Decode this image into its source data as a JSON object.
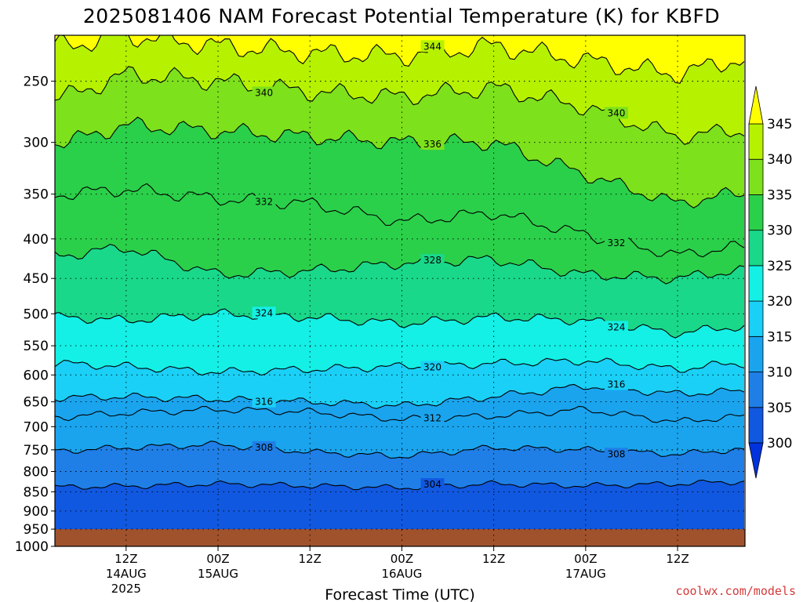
{
  "chart_data": {
    "type": "heatmap",
    "title": "2025081406 NAM Forecast Potential Temperature (K) for KBFD",
    "xlabel": "Forecast Time (UTC)",
    "ylabel": "",
    "credit": "coolwx.com/models",
    "y_scale": "log",
    "y_ticks": [
      250,
      300,
      350,
      400,
      450,
      500,
      550,
      600,
      650,
      700,
      750,
      800,
      850,
      900,
      950,
      1000
    ],
    "x_ticks": [
      {
        "hour": 6,
        "label": "12Z",
        "sub1": "14AUG",
        "sub2": "2025"
      },
      {
        "hour": 18,
        "label": "00Z",
        "sub1": "15AUG",
        "sub2": ""
      },
      {
        "hour": 30,
        "label": "12Z",
        "sub1": "",
        "sub2": ""
      },
      {
        "hour": 42,
        "label": "00Z",
        "sub1": "16AUG",
        "sub2": ""
      },
      {
        "hour": 54,
        "label": "12Z",
        "sub1": "",
        "sub2": ""
      },
      {
        "hour": 66,
        "label": "00Z",
        "sub1": "17AUG",
        "sub2": ""
      },
      {
        "hour": 78,
        "label": "12Z",
        "sub1": "",
        "sub2": ""
      }
    ],
    "colorbar": {
      "levels": [
        300,
        305,
        310,
        315,
        320,
        325,
        330,
        335,
        340,
        345
      ],
      "colors": [
        "#0033dd",
        "#1158e0",
        "#1f7fe6",
        "#1aa4ee",
        "#1ad0f6",
        "#14f0e6",
        "#19d88a",
        "#2bd04a",
        "#7de11c",
        "#b6f200",
        "#ffff00"
      ]
    },
    "surface_pressure_hPa": 950,
    "ground_color": "#a0522d",
    "contours": [
      {
        "value": 304,
        "label": "304",
        "y_by_hour": [
          [
            -2,
            838
          ],
          [
            6,
            836
          ],
          [
            18,
            830
          ],
          [
            30,
            835
          ],
          [
            42,
            840
          ],
          [
            54,
            830
          ],
          [
            66,
            835
          ],
          [
            78,
            830
          ],
          [
            85,
            825
          ]
        ]
      },
      {
        "value": 308,
        "label": "308",
        "y_by_hour": [
          [
            -2,
            752
          ],
          [
            6,
            745
          ],
          [
            18,
            738
          ],
          [
            30,
            755
          ],
          [
            42,
            765
          ],
          [
            54,
            745
          ],
          [
            66,
            750
          ],
          [
            78,
            760
          ],
          [
            85,
            750
          ]
        ]
      },
      {
        "value": 312,
        "label": "312",
        "y_by_hour": [
          [
            -2,
            680
          ],
          [
            6,
            672
          ],
          [
            18,
            665
          ],
          [
            30,
            670
          ],
          [
            42,
            685
          ],
          [
            54,
            678
          ],
          [
            66,
            665
          ],
          [
            78,
            690
          ],
          [
            85,
            680
          ]
        ]
      },
      {
        "value": 316,
        "label": "316",
        "y_by_hour": [
          [
            -2,
            642
          ],
          [
            6,
            640
          ],
          [
            18,
            645
          ],
          [
            30,
            650
          ],
          [
            42,
            658
          ],
          [
            54,
            640
          ],
          [
            66,
            620
          ],
          [
            78,
            635
          ],
          [
            85,
            630
          ]
        ]
      },
      {
        "value": 320,
        "label": "320",
        "y_by_hour": [
          [
            -2,
            580
          ],
          [
            6,
            585
          ],
          [
            18,
            595
          ],
          [
            30,
            590
          ],
          [
            42,
            585
          ],
          [
            54,
            580
          ],
          [
            66,
            575
          ],
          [
            78,
            590
          ],
          [
            85,
            580
          ]
        ]
      },
      {
        "value": 324,
        "label": "324",
        "y_by_hour": [
          [
            -2,
            505
          ],
          [
            6,
            510
          ],
          [
            18,
            500
          ],
          [
            30,
            505
          ],
          [
            42,
            515
          ],
          [
            54,
            505
          ],
          [
            66,
            510
          ],
          [
            78,
            530
          ],
          [
            85,
            520
          ]
        ]
      },
      {
        "value": 328,
        "label": "328",
        "y_by_hour": [
          [
            -2,
            420
          ],
          [
            6,
            410
          ],
          [
            18,
            445
          ],
          [
            30,
            440
          ],
          [
            42,
            430
          ],
          [
            54,
            425
          ],
          [
            66,
            445
          ],
          [
            78,
            450
          ],
          [
            85,
            440
          ]
        ]
      },
      {
        "value": 332,
        "label": "332",
        "y_by_hour": [
          [
            -2,
            350
          ],
          [
            6,
            345
          ],
          [
            18,
            355
          ],
          [
            30,
            360
          ],
          [
            42,
            380
          ],
          [
            54,
            370
          ],
          [
            66,
            395
          ],
          [
            78,
            420
          ],
          [
            85,
            410
          ]
        ]
      },
      {
        "value": 336,
        "label": "336",
        "y_by_hour": [
          [
            -2,
            300
          ],
          [
            6,
            285
          ],
          [
            18,
            290
          ],
          [
            30,
            295
          ],
          [
            42,
            300
          ],
          [
            54,
            300
          ],
          [
            66,
            330
          ],
          [
            78,
            360
          ],
          [
            85,
            350
          ]
        ]
      },
      {
        "value": 340,
        "label": "340",
        "y_by_hour": [
          [
            -2,
            262
          ],
          [
            6,
            245
          ],
          [
            18,
            250
          ],
          [
            30,
            258
          ],
          [
            42,
            262
          ],
          [
            54,
            255
          ],
          [
            66,
            270
          ],
          [
            78,
            295
          ],
          [
            85,
            290
          ]
        ]
      },
      {
        "value": 344,
        "label": "344",
        "y_by_hour": [
          [
            -2,
            225
          ],
          [
            6,
            218
          ],
          [
            18,
            225
          ],
          [
            30,
            230
          ],
          [
            42,
            232
          ],
          [
            54,
            225
          ],
          [
            66,
            235
          ],
          [
            78,
            245
          ],
          [
            85,
            235
          ]
        ]
      }
    ]
  }
}
